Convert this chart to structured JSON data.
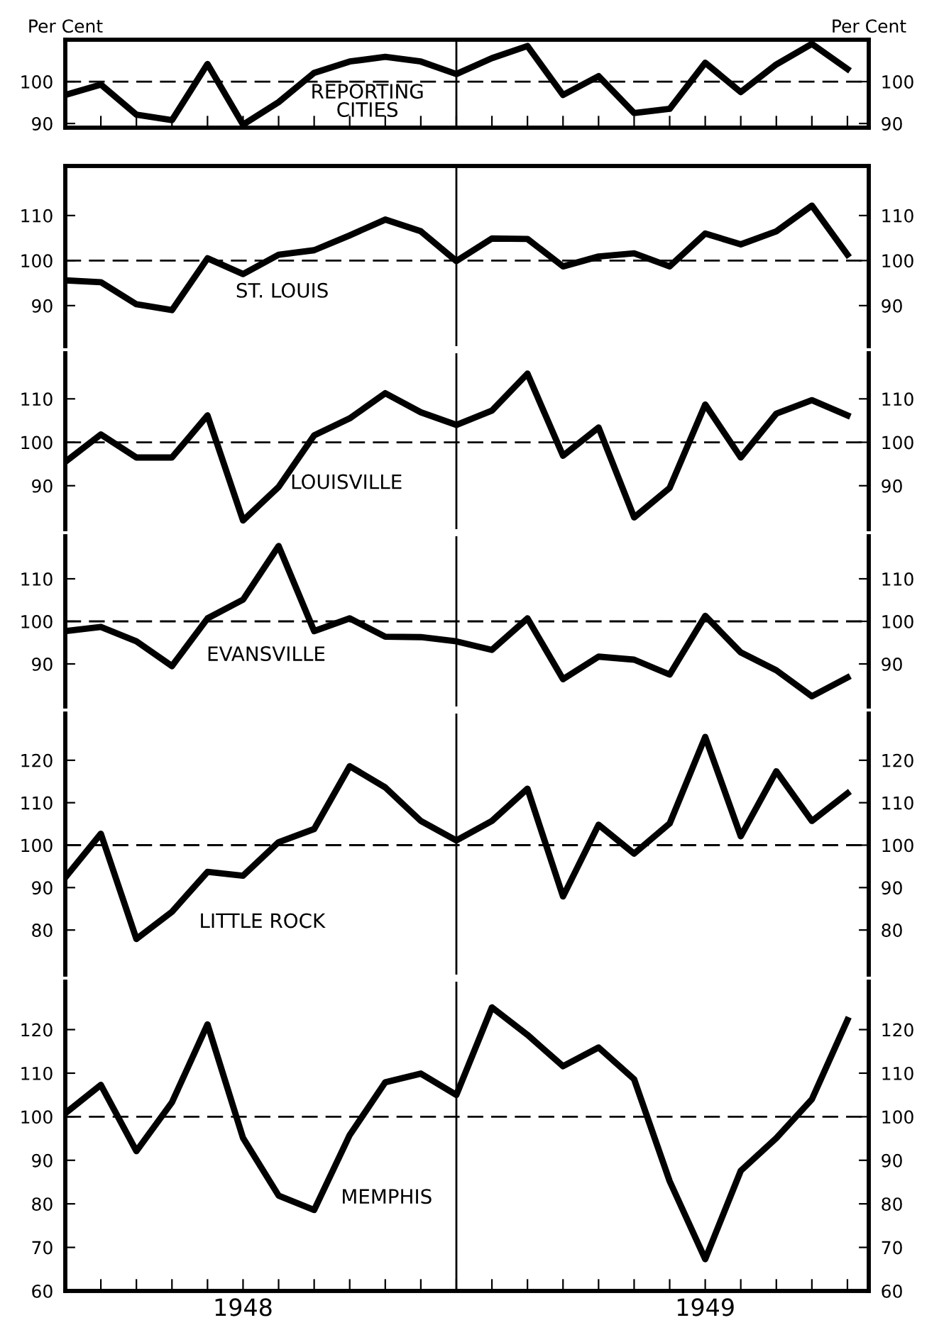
{
  "chart_data": [
    {
      "type": "line",
      "ylabel": "Per Cent",
      "y2label": "Per Cent",
      "categories": [
        null,
        null,
        null,
        null,
        null,
        null,
        null,
        null,
        null,
        null,
        null,
        null,
        null,
        null,
        null,
        null,
        null,
        null,
        null,
        null,
        null,
        null,
        null
      ],
      "series": [
        {
          "name": "REPORTING\nCITIES",
          "color": "#000000",
          "values": [
            96.8,
            99.3,
            92.1,
            90.8,
            104.2,
            89.7,
            95.1,
            102.1,
            104.8,
            105.9,
            104.8,
            101.8,
            105.6,
            108.5,
            96.8,
            101.3,
            92.5,
            93.5,
            104.5,
            97.5,
            104.1,
            109.0,
            103.0
          ]
        }
      ],
      "ylim": [
        89,
        110
      ],
      "yticks": [
        90,
        100
      ],
      "y2lim": [
        89,
        110
      ],
      "y2ticks": [
        90,
        100
      ],
      "tick_labels": "y",
      "marker": "none",
      "line_style": "solid",
      "grid": false,
      "legend": false,
      "ref_lines": [
        {
          "axis": "y",
          "value": 100,
          "line_style": "dashed",
          "color": "#000000"
        }
      ]
    },
    {
      "type": "line",
      "categories": [
        null,
        null,
        null,
        null,
        null,
        null,
        null,
        null,
        null,
        null,
        null,
        null,
        null,
        null,
        null,
        null,
        null,
        null,
        null,
        null,
        null,
        null,
        null
      ],
      "series": [
        {
          "name": "ST. LOUIS",
          "color": "#000000",
          "values": [
            95.6,
            95.2,
            90.3,
            89.0,
            100.5,
            97.0,
            101.3,
            102.3,
            105.6,
            109.1,
            106.5,
            99.9,
            104.9,
            104.8,
            98.7,
            100.9,
            101.6,
            98.7,
            106.0,
            103.6,
            106.5,
            112.2,
            101.3
          ]
        }
      ],
      "ylim": [
        81,
        121
      ],
      "yticks": [
        90,
        100,
        110
      ],
      "y2lim": [
        81,
        121
      ],
      "y2ticks": [
        90,
        100,
        110
      ],
      "tick_labels": "y",
      "marker": "none",
      "line_style": "solid",
      "grid": false,
      "legend": false,
      "ref_lines": [
        {
          "axis": "y",
          "value": 100,
          "line_style": "dashed",
          "color": "#000000"
        }
      ]
    },
    {
      "type": "line",
      "categories": [
        null,
        null,
        null,
        null,
        null,
        null,
        null,
        null,
        null,
        null,
        null,
        null,
        null,
        null,
        null,
        null,
        null,
        null,
        null,
        null,
        null,
        null,
        null
      ],
      "series": [
        {
          "name": "LOUISVILLE",
          "color": "#000000",
          "values": [
            95.5,
            101.8,
            96.5,
            96.5,
            106.2,
            82.0,
            89.7,
            101.6,
            105.5,
            111.3,
            106.9,
            104.0,
            107.3,
            115.8,
            96.9,
            103.4,
            82.7,
            89.5,
            108.7,
            96.5,
            106.6,
            109.7,
            106.2
          ]
        }
      ],
      "ylim": [
        80,
        120.5
      ],
      "yticks": [
        90,
        100,
        110
      ],
      "y2lim": [
        80,
        120.5
      ],
      "y2ticks": [
        90,
        100,
        110
      ],
      "tick_labels": "y",
      "marker": "none",
      "line_style": "solid",
      "grid": false,
      "legend": false,
      "ref_lines": [
        {
          "axis": "y",
          "value": 100,
          "line_style": "dashed",
          "color": "#000000"
        }
      ]
    },
    {
      "type": "line",
      "categories": [
        null,
        null,
        null,
        null,
        null,
        null,
        null,
        null,
        null,
        null,
        null,
        null,
        null,
        null,
        null,
        null,
        null,
        null,
        null,
        null,
        null,
        null,
        null
      ],
      "series": [
        {
          "name": "EVANSVILLE",
          "color": "#000000",
          "values": [
            97.7,
            98.7,
            95.3,
            89.5,
            100.7,
            105.1,
            117.7,
            97.7,
            100.7,
            96.4,
            96.3,
            95.3,
            93.3,
            100.7,
            86.4,
            91.7,
            91.0,
            87.5,
            101.3,
            92.7,
            88.5,
            82.4,
            86.8
          ]
        }
      ],
      "ylim": [
        80,
        120
      ],
      "yticks": [
        90,
        100,
        110
      ],
      "y2lim": [
        80,
        120
      ],
      "y2ticks": [
        90,
        100,
        110
      ],
      "tick_labels": "y",
      "marker": "none",
      "line_style": "solid",
      "grid": false,
      "legend": false,
      "ref_lines": [
        {
          "axis": "y",
          "value": 100,
          "line_style": "dashed",
          "color": "#000000"
        }
      ]
    },
    {
      "type": "line",
      "categories": [
        null,
        null,
        null,
        null,
        null,
        null,
        null,
        null,
        null,
        null,
        null,
        null,
        null,
        null,
        null,
        null,
        null,
        null,
        null,
        null,
        null,
        null,
        null
      ],
      "series": [
        {
          "name": "LITTLE ROCK",
          "color": "#000000",
          "values": [
            92.4,
            102.7,
            77.9,
            84.3,
            93.7,
            92.8,
            100.7,
            103.8,
            118.6,
            113.6,
            105.7,
            101.1,
            105.7,
            113.3,
            87.9,
            104.8,
            98.0,
            105.1,
            125.5,
            102.1,
            117.4,
            105.7,
            112.2
          ]
        }
      ],
      "ylim": [
        69.5,
        131
      ],
      "yticks": [
        80,
        90,
        100,
        110,
        120
      ],
      "y2lim": [
        69.5,
        131
      ],
      "y2ticks": [
        80,
        90,
        100,
        110,
        120
      ],
      "tick_labels": "y",
      "marker": "none",
      "line_style": "solid",
      "grid": false,
      "legend": false,
      "ref_lines": [
        {
          "axis": "y",
          "value": 100,
          "line_style": "dashed",
          "color": "#000000"
        }
      ]
    },
    {
      "type": "line",
      "categories": [
        null,
        null,
        null,
        null,
        null,
        "1948",
        null,
        null,
        null,
        null,
        null,
        null,
        null,
        null,
        null,
        null,
        null,
        null,
        "1949",
        null,
        null,
        null,
        null
      ],
      "series": [
        {
          "name": "MEMPHIS",
          "color": "#000000",
          "values": [
            100.8,
            107.3,
            92.1,
            103.3,
            121.2,
            95.1,
            81.9,
            78.6,
            95.8,
            107.9,
            109.9,
            105.0,
            125.1,
            118.8,
            111.6,
            115.9,
            108.6,
            85.2,
            67.3,
            87.6,
            95.1,
            104.0,
            122.2
          ]
        }
      ],
      "ylim": [
        60,
        131
      ],
      "yticks": [
        60,
        70,
        80,
        90,
        100,
        110,
        120
      ],
      "y2lim": [
        60,
        131
      ],
      "y2ticks": [
        60,
        70,
        80,
        90,
        100,
        110,
        120
      ],
      "marker": "none",
      "line_style": "solid",
      "grid": false,
      "legend": false,
      "ref_lines": [
        {
          "axis": "y",
          "value": 100,
          "line_style": "dashed",
          "color": "#000000"
        }
      ]
    }
  ]
}
